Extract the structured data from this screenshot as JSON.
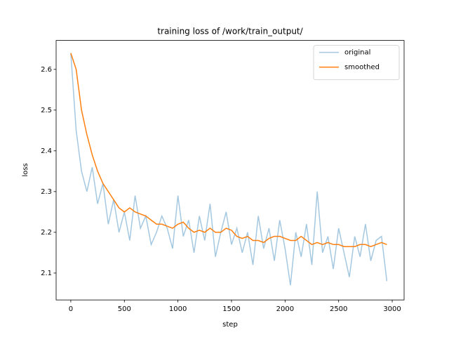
{
  "chart_data": {
    "type": "line",
    "title": "training loss of /work/train_output/",
    "x_label": "step",
    "y_label": "loss",
    "x": [
      0,
      50,
      100,
      150,
      200,
      250,
      300,
      350,
      400,
      450,
      500,
      550,
      600,
      650,
      700,
      750,
      800,
      850,
      900,
      950,
      1000,
      1050,
      1100,
      1150,
      1200,
      1250,
      1300,
      1350,
      1400,
      1450,
      1500,
      1550,
      1600,
      1650,
      1700,
      1750,
      1800,
      1850,
      1900,
      1950,
      2000,
      2050,
      2100,
      2150,
      2200,
      2250,
      2300,
      2350,
      2400,
      2450,
      2500,
      2550,
      2600,
      2650,
      2700,
      2750,
      2800,
      2850,
      2900,
      2950
    ],
    "series": [
      {
        "name": "original",
        "color": "#a5c8e1",
        "values": [
          2.64,
          2.45,
          2.35,
          2.3,
          2.36,
          2.27,
          2.32,
          2.22,
          2.28,
          2.2,
          2.25,
          2.18,
          2.29,
          2.21,
          2.24,
          2.17,
          2.2,
          2.24,
          2.21,
          2.16,
          2.29,
          2.19,
          2.23,
          2.15,
          2.24,
          2.18,
          2.27,
          2.14,
          2.2,
          2.25,
          2.17,
          2.21,
          2.15,
          2.2,
          2.12,
          2.24,
          2.16,
          2.21,
          2.13,
          2.23,
          2.16,
          2.07,
          2.2,
          2.14,
          2.22,
          2.12,
          2.3,
          2.15,
          2.19,
          2.11,
          2.21,
          2.15,
          2.09,
          2.19,
          2.14,
          2.22,
          2.13,
          2.18,
          2.19,
          2.08
        ]
      },
      {
        "name": "smoothed",
        "color": "#ff7f0e",
        "values": [
          2.64,
          2.6,
          2.5,
          2.44,
          2.39,
          2.35,
          2.32,
          2.3,
          2.28,
          2.26,
          2.25,
          2.26,
          2.25,
          2.245,
          2.24,
          2.23,
          2.22,
          2.22,
          2.215,
          2.21,
          2.22,
          2.225,
          2.21,
          2.2,
          2.205,
          2.2,
          2.21,
          2.2,
          2.2,
          2.21,
          2.205,
          2.19,
          2.185,
          2.19,
          2.18,
          2.18,
          2.175,
          2.185,
          2.19,
          2.19,
          2.185,
          2.18,
          2.18,
          2.19,
          2.18,
          2.17,
          2.175,
          2.17,
          2.175,
          2.17,
          2.17,
          2.165,
          2.165,
          2.165,
          2.17,
          2.17,
          2.165,
          2.17,
          2.175,
          2.17
        ]
      }
    ],
    "xlim": [
      -137,
      3111
    ],
    "ylim": [
      2.034,
      2.671
    ],
    "xticks": [
      0,
      500,
      1000,
      1500,
      2000,
      2500,
      3000
    ],
    "yticks": [
      2.1,
      2.2,
      2.3,
      2.4,
      2.5,
      2.6
    ],
    "legend": "upper right"
  }
}
